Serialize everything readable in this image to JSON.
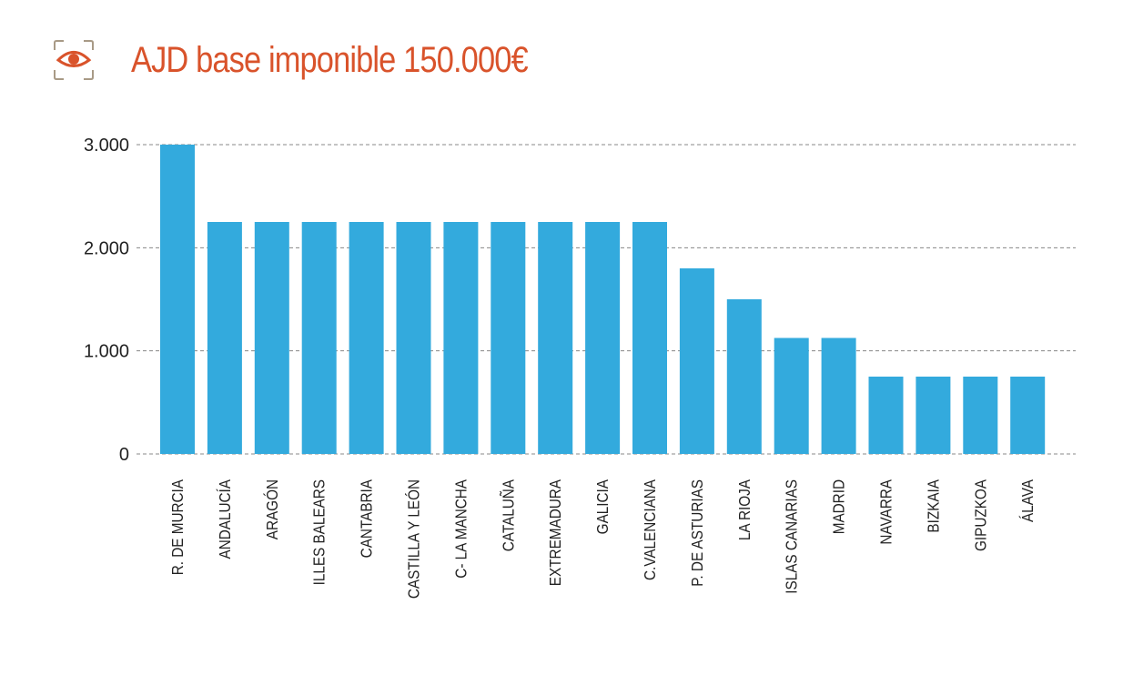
{
  "colors": {
    "title": "#d9532b",
    "icon": "#d9532b",
    "icon_frame": "#a89a86",
    "bar": "#33aadd",
    "grid": "#888888",
    "text": "#222222"
  },
  "header": {
    "icon": "eye-icon"
  },
  "chart_data": {
    "type": "bar",
    "title": "AJD base imponible 150.000€",
    "xlabel": "",
    "ylabel": "",
    "ylim": [
      0,
      3000
    ],
    "yticks": [
      0,
      1000,
      2000,
      3000
    ],
    "ytick_labels": [
      "0",
      "1.000",
      "2.000",
      "3.000"
    ],
    "grid": true,
    "categories": [
      "R. DE MURCIA",
      "ANDALUCÍA",
      "ARAGÓN",
      "ILLES BALEARS",
      "CANTABRIA",
      "CASTILLA Y LEÓN",
      "C- LA MANCHA",
      "CATALUÑA",
      "EXTREMADURA",
      "GALICIA",
      "C.VALENCIANA",
      "P. DE ASTURIAS",
      "LA RIOJA",
      "ISLAS CANARIAS",
      "MADRID",
      "NAVARRA",
      "BIZKAIA",
      "GIPUZKOA",
      "ÁLAVA"
    ],
    "values": [
      3000,
      2250,
      2250,
      2250,
      2250,
      2250,
      2250,
      2250,
      2250,
      2250,
      2250,
      1800,
      1500,
      1125,
      1125,
      750,
      750,
      750,
      750
    ]
  }
}
